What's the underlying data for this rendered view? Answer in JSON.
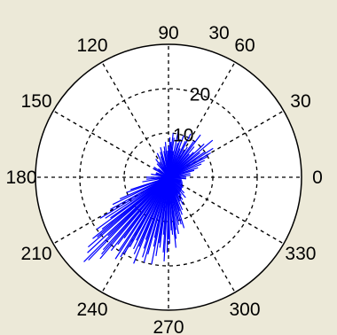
{
  "chart_data": {
    "type": "polar",
    "colors": {
      "background": "#ece9d8",
      "plot_area": "#ffffff",
      "grid": "#000000",
      "line": "#0000ff"
    },
    "grid": true,
    "angle_ticks": [
      "0",
      "30",
      "60",
      "90",
      "120",
      "150",
      "180",
      "210",
      "240",
      "270",
      "300",
      "330"
    ],
    "radius_ticks": [
      {
        "value": 10,
        "label": "10"
      },
      {
        "value": 20,
        "label": "20"
      },
      {
        "value": 30,
        "label": "30"
      }
    ],
    "rlim": [
      0,
      30
    ],
    "series": [
      {
        "comment_free": true,
        "points": [
          [
            225,
            27
          ],
          [
            221,
            24
          ],
          [
            228,
            22
          ],
          [
            232,
            21
          ],
          [
            218,
            19
          ],
          [
            236,
            20
          ],
          [
            241,
            18
          ],
          [
            247,
            17
          ],
          [
            252,
            19
          ],
          [
            258,
            16
          ],
          [
            262,
            15
          ],
          [
            266,
            17
          ],
          [
            270,
            14
          ],
          [
            274,
            13
          ],
          [
            278,
            12
          ],
          [
            283,
            10
          ],
          [
            288,
            8
          ],
          [
            295,
            6
          ],
          [
            305,
            5
          ],
          [
            318,
            4
          ],
          [
            330,
            3
          ],
          [
            345,
            3
          ],
          [
            0,
            4
          ],
          [
            10,
            5
          ],
          [
            18,
            7
          ],
          [
            25,
            9
          ],
          [
            30,
            11
          ],
          [
            35,
            10
          ],
          [
            40,
            13
          ],
          [
            45,
            8
          ],
          [
            50,
            9
          ],
          [
            55,
            10
          ],
          [
            60,
            7
          ],
          [
            65,
            9
          ],
          [
            70,
            10
          ],
          [
            75,
            8
          ],
          [
            78,
            11
          ],
          [
            82,
            9
          ],
          [
            86,
            8
          ],
          [
            90,
            7
          ],
          [
            95,
            8
          ],
          [
            100,
            6
          ],
          [
            105,
            7
          ],
          [
            110,
            5
          ],
          [
            115,
            6
          ],
          [
            120,
            4
          ],
          [
            130,
            4
          ],
          [
            140,
            3
          ],
          [
            150,
            4
          ],
          [
            160,
            3
          ],
          [
            170,
            4
          ],
          [
            180,
            5
          ],
          [
            190,
            6
          ],
          [
            198,
            9
          ],
          [
            204,
            12
          ],
          [
            209,
            15
          ],
          [
            213,
            17
          ],
          [
            216,
            20
          ],
          [
            219,
            22
          ],
          [
            223,
            25
          ],
          [
            226,
            26
          ],
          [
            229,
            23
          ],
          [
            233,
            19
          ],
          [
            237,
            22
          ],
          [
            240,
            20
          ],
          [
            244,
            18
          ],
          [
            248,
            21
          ],
          [
            251,
            17
          ],
          [
            255,
            18
          ],
          [
            259,
            20
          ],
          [
            263,
            16
          ],
          [
            267,
            19
          ],
          [
            271,
            15
          ],
          [
            276,
            16
          ],
          [
            280,
            13
          ],
          [
            285,
            11
          ],
          [
            290,
            9
          ],
          [
            298,
            7
          ],
          [
            310,
            6
          ],
          [
            325,
            4
          ],
          [
            340,
            3
          ],
          [
            355,
            4
          ],
          [
            15,
            6
          ],
          [
            28,
            10
          ],
          [
            33,
            12
          ],
          [
            38,
            9
          ],
          [
            43,
            11
          ],
          [
            48,
            7
          ],
          [
            53,
            12
          ],
          [
            58,
            8
          ],
          [
            63,
            11
          ],
          [
            68,
            7
          ],
          [
            73,
            9
          ],
          [
            80,
            6
          ],
          [
            84,
            10
          ],
          [
            88,
            9
          ],
          [
            92,
            6
          ],
          [
            98,
            7
          ],
          [
            108,
            6
          ],
          [
            125,
            5
          ],
          [
            145,
            4
          ],
          [
            165,
            3
          ],
          [
            185,
            5
          ],
          [
            200,
            10
          ],
          [
            206,
            14
          ],
          [
            211,
            18
          ],
          [
            215,
            16
          ],
          [
            220,
            21
          ],
          [
            224,
            19
          ],
          [
            230,
            24
          ],
          [
            234,
            17
          ],
          [
            239,
            21
          ],
          [
            243,
            16
          ],
          [
            246,
            19
          ],
          [
            250,
            15
          ],
          [
            254,
            20
          ],
          [
            257,
            14
          ],
          [
            261,
            18
          ],
          [
            265,
            13
          ],
          [
            269,
            17
          ],
          [
            273,
            12
          ],
          [
            277,
            14
          ],
          [
            282,
            11
          ],
          [
            287,
            12
          ],
          [
            293,
            8
          ],
          [
            302,
            6
          ],
          [
            315,
            5
          ],
          [
            335,
            3
          ],
          [
            5,
            5
          ],
          [
            22,
            8
          ]
        ]
      }
    ]
  }
}
